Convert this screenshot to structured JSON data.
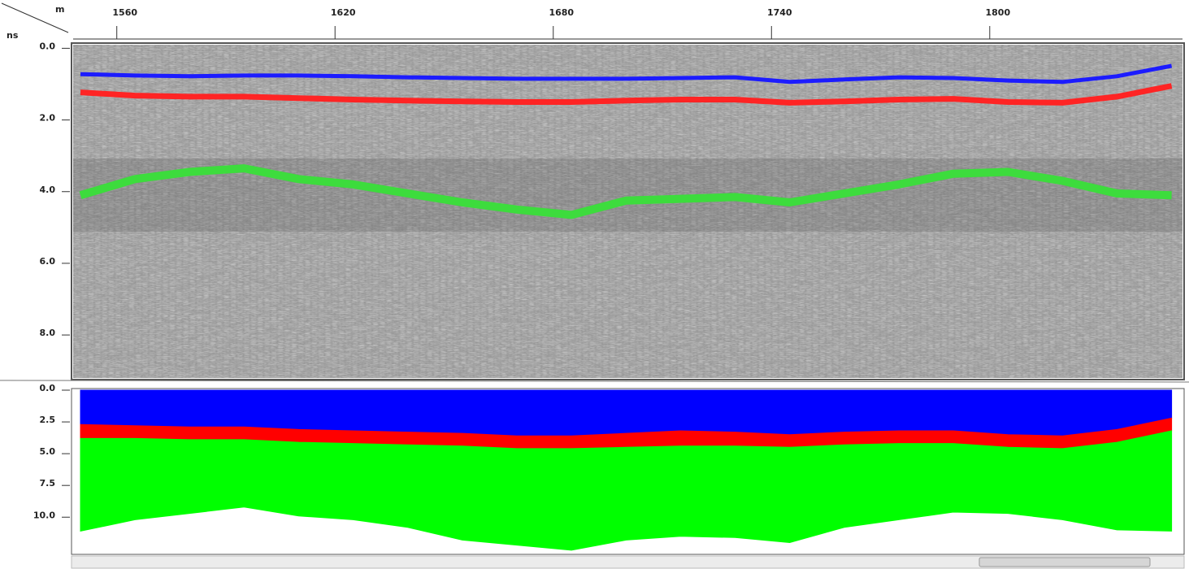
{
  "chart_data": [
    {
      "type": "line",
      "xlabel": "m",
      "ylabel": "ns",
      "invert_y": true,
      "x": [
        1550,
        1565,
        1580,
        1595,
        1610,
        1625,
        1640,
        1655,
        1670,
        1685,
        1700,
        1715,
        1730,
        1745,
        1760,
        1775,
        1790,
        1805,
        1820,
        1835,
        1850
      ],
      "xlim": [
        1548,
        1853
      ],
      "xticks": [
        1560,
        1620,
        1680,
        1740,
        1800
      ],
      "ylim": [
        -0.1,
        9.2
      ],
      "yticks": [
        {
          "value": 0,
          "label": "0.0"
        },
        {
          "value": 2,
          "label": "2.0"
        },
        {
          "value": 4,
          "label": "4.0"
        },
        {
          "value": 6,
          "label": "6.0"
        },
        {
          "value": 8,
          "label": "8.0"
        }
      ],
      "series": [
        {
          "color": "#1c1cff",
          "values": [
            0.72,
            0.76,
            0.78,
            0.76,
            0.76,
            0.78,
            0.81,
            0.83,
            0.85,
            0.85,
            0.85,
            0.83,
            0.81,
            0.94,
            0.87,
            0.81,
            0.83,
            0.9,
            0.94,
            0.78,
            0.49
          ]
        },
        {
          "color": "#ff2424",
          "values": [
            1.23,
            1.32,
            1.35,
            1.35,
            1.39,
            1.43,
            1.46,
            1.48,
            1.5,
            1.5,
            1.46,
            1.43,
            1.43,
            1.52,
            1.48,
            1.43,
            1.41,
            1.5,
            1.52,
            1.35,
            1.05
          ]
        },
        {
          "color": "#3ddc3d",
          "values": [
            4.1,
            3.65,
            3.45,
            3.35,
            3.65,
            3.8,
            4.05,
            4.3,
            4.5,
            4.65,
            4.25,
            4.2,
            4.15,
            4.3,
            4.05,
            3.8,
            3.5,
            3.45,
            3.7,
            4.05,
            4.1
          ]
        }
      ]
    },
    {
      "type": "stacked_area",
      "invert_y": true,
      "x": [
        1550,
        1565,
        1580,
        1595,
        1610,
        1625,
        1640,
        1655,
        1670,
        1685,
        1700,
        1715,
        1730,
        1745,
        1760,
        1775,
        1790,
        1805,
        1820,
        1835,
        1850
      ],
      "xlim": [
        1548,
        1853
      ],
      "ylim": [
        0,
        12.8
      ],
      "yticks": [
        {
          "value": 0,
          "label": "0.0"
        },
        2.5,
        {
          "value": 5,
          "label": "5.0"
        },
        7.5,
        {
          "value": 10,
          "label": "10.0"
        }
      ],
      "series": [
        {
          "color": "#0000ff",
          "values": [
            2.7,
            2.8,
            2.9,
            2.9,
            3.1,
            3.2,
            3.3,
            3.4,
            3.6,
            3.6,
            3.4,
            3.2,
            3.3,
            3.5,
            3.3,
            3.2,
            3.2,
            3.5,
            3.6,
            3.1,
            2.2
          ]
        },
        {
          "color": "#ff0000",
          "values": [
            1.1,
            1.0,
            1.0,
            1.0,
            1.0,
            1.0,
            1.0,
            1.0,
            1.0,
            1.0,
            1.1,
            1.2,
            1.1,
            1.0,
            1.0,
            1.0,
            1.0,
            1.0,
            1.0,
            1.0,
            1.0
          ]
        },
        {
          "color": "#00ff00",
          "values": [
            7.3,
            6.4,
            5.8,
            5.3,
            5.8,
            6.0,
            6.5,
            7.4,
            7.6,
            8.0,
            7.3,
            7.1,
            7.2,
            7.5,
            6.5,
            6.0,
            5.4,
            5.2,
            5.6,
            6.9,
            7.9
          ]
        }
      ]
    }
  ]
}
